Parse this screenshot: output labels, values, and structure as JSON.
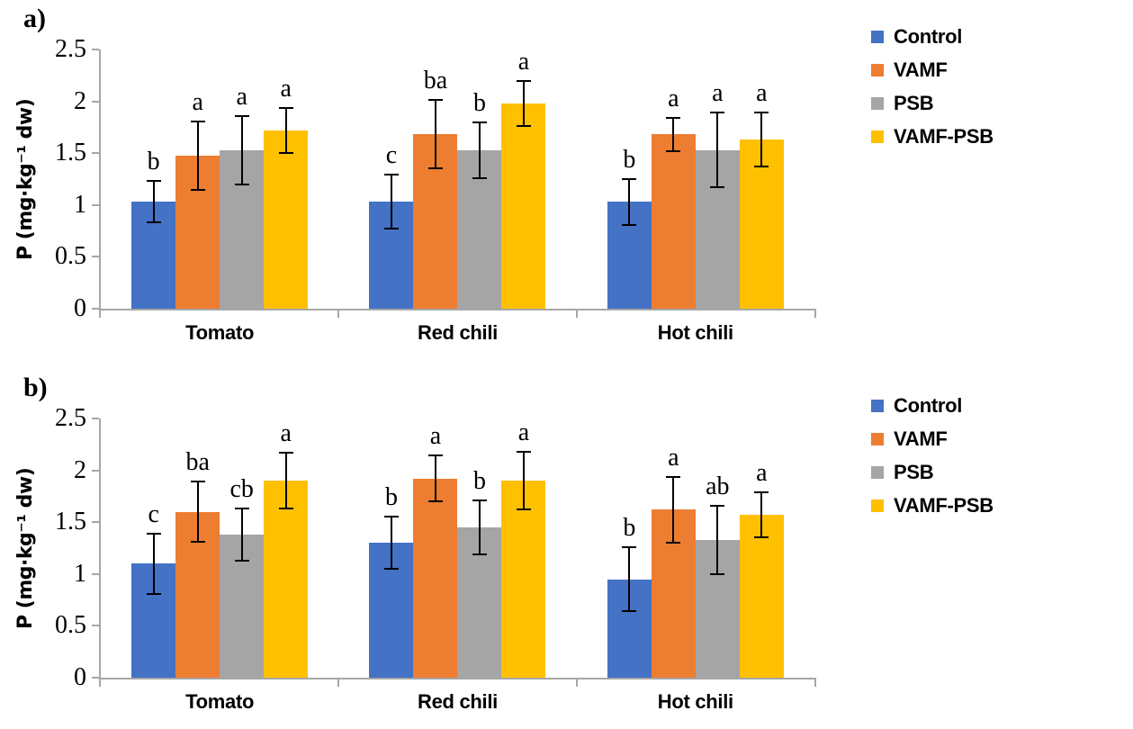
{
  "figure": {
    "panel_count": 2,
    "accent_colors": {
      "control_blue": "#4472C4",
      "vamf_orange": "#ED7D31",
      "psb_gray": "#A5A5A5",
      "vamf_psb_yellow": "#FFC000",
      "axis_gray": "#a6a6a6",
      "error_bar_black": "#000000"
    }
  },
  "chart_data": [
    {
      "type": "bar",
      "label": "a)",
      "title": "",
      "ylabel": "P (mg·kg⁻¹ dw)",
      "xlabel": "",
      "ylim": [
        0,
        2.5
      ],
      "ytick_labels": [
        "0",
        "0.5",
        "1",
        "1.5",
        "2",
        "2.5"
      ],
      "grid": false,
      "legend_position": "right",
      "error_bars": true,
      "categories": [
        "Tomato",
        "Red chili",
        "Hot chili"
      ],
      "series": [
        {
          "name": "Control",
          "color": "#4472C4",
          "values": [
            1.03,
            1.03,
            1.03
          ],
          "errors": [
            0.2,
            0.26,
            0.22
          ],
          "sig_letters": [
            "b",
            "c",
            "b"
          ]
        },
        {
          "name": "VAMF",
          "color": "#ED7D31",
          "values": [
            1.48,
            1.68,
            1.68
          ],
          "errors": [
            0.33,
            0.33,
            0.16
          ],
          "sig_letters": [
            "a",
            "ba",
            "a"
          ]
        },
        {
          "name": "PSB",
          "color": "#A5A5A5",
          "values": [
            1.53,
            1.53,
            1.53
          ],
          "errors": [
            0.33,
            0.27,
            0.36
          ],
          "sig_letters": [
            "a",
            "b",
            "a"
          ]
        },
        {
          "name": "VAMF-PSB",
          "color": "#FFC000",
          "values": [
            1.72,
            1.98,
            1.63
          ],
          "errors": [
            0.22,
            0.22,
            0.26
          ],
          "sig_letters": [
            "a",
            "a",
            "a"
          ]
        }
      ]
    },
    {
      "type": "bar",
      "label": "b)",
      "title": "",
      "ylabel": "P (mg·kg⁻¹ dw)",
      "xlabel": "",
      "ylim": [
        0,
        2.5
      ],
      "ytick_labels": [
        "0",
        "0.5",
        "1",
        "1.5",
        "2",
        "2.5"
      ],
      "grid": false,
      "legend_position": "right",
      "error_bars": true,
      "categories": [
        "Tomato",
        "Red chili",
        "Hot chili"
      ],
      "series": [
        {
          "name": "Control",
          "color": "#4472C4",
          "values": [
            1.1,
            1.3,
            0.95
          ],
          "errors": [
            0.29,
            0.25,
            0.31
          ],
          "sig_letters": [
            "c",
            "b",
            "b"
          ]
        },
        {
          "name": "VAMF",
          "color": "#ED7D31",
          "values": [
            1.6,
            1.92,
            1.62
          ],
          "errors": [
            0.29,
            0.22,
            0.32
          ],
          "sig_letters": [
            "ba",
            "a",
            "a"
          ]
        },
        {
          "name": "PSB",
          "color": "#A5A5A5",
          "values": [
            1.38,
            1.45,
            1.33
          ],
          "errors": [
            0.25,
            0.26,
            0.33
          ],
          "sig_letters": [
            "cb",
            "b",
            "ab"
          ]
        },
        {
          "name": "VAMF-PSB",
          "color": "#FFC000",
          "values": [
            1.9,
            1.9,
            1.57
          ],
          "errors": [
            0.27,
            0.28,
            0.22
          ],
          "sig_letters": [
            "a",
            "a",
            "a"
          ]
        }
      ]
    }
  ]
}
